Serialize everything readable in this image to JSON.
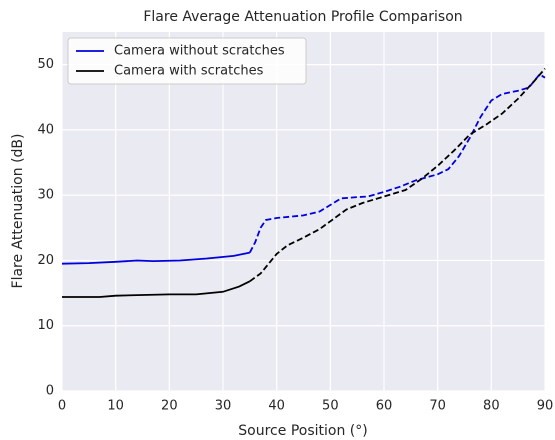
{
  "chart_data": {
    "type": "line",
    "title": "Flare Average Attenuation Profile Comparison",
    "xlabel": "Source Position (°)",
    "ylabel": "Flare Attenuation (dB)",
    "xlim": [
      0,
      90
    ],
    "xticks": [
      0,
      10,
      20,
      30,
      40,
      50,
      60,
      70,
      80,
      90
    ],
    "ylim": [
      0,
      55
    ],
    "yticks": [
      0,
      10,
      20,
      30,
      40,
      50
    ],
    "grid": true,
    "legend": "upper left",
    "series": [
      {
        "name": "Camera without scratches",
        "color": "#0000dd",
        "segments": [
          {
            "style": "solid",
            "x": [
              0,
              5,
              10,
              14,
              17,
              22,
              27,
              32,
              35
            ],
            "values": [
              19.5,
              19.6,
              19.8,
              20,
              19.9,
              20,
              20.3,
              20.7,
              21.2
            ]
          },
          {
            "style": "dashed",
            "x": [
              35,
              36,
              37,
              38,
              40,
              45,
              48,
              50,
              52,
              55,
              57,
              60,
              63,
              66,
              70,
              72,
              74,
              76,
              78,
              80,
              82,
              85,
              87,
              89,
              90
            ],
            "values": [
              21.2,
              22.8,
              25,
              26.2,
              26.5,
              26.9,
              27.5,
              28.5,
              29.5,
              29.7,
              29.8,
              30.5,
              31.3,
              32.3,
              33.2,
              34,
              36,
              38.8,
              42,
              44.5,
              45.5,
              46,
              46.5,
              48.5,
              48
            ]
          }
        ]
      },
      {
        "name": "Camera with scratches",
        "color": "#000000",
        "segments": [
          {
            "style": "solid",
            "x": [
              0,
              7,
              10,
              15,
              20,
              25,
              30,
              33,
              35
            ],
            "values": [
              14.4,
              14.4,
              14.6,
              14.7,
              14.8,
              14.8,
              15.2,
              16,
              16.8
            ]
          },
          {
            "style": "dashed",
            "x": [
              35,
              37,
              40,
              42,
              45,
              48,
              50,
              53,
              56,
              60,
              64,
              67,
              70,
              73,
              76,
              79,
              82,
              85,
              88,
              90
            ],
            "values": [
              16.8,
              18,
              21,
              22.3,
              23.5,
              24.8,
              26,
              27.8,
              28.8,
              29.8,
              30.8,
              32.5,
              34.5,
              36.8,
              39.3,
              40.8,
              42.5,
              44.8,
              47.5,
              49.4
            ]
          }
        ]
      }
    ]
  }
}
